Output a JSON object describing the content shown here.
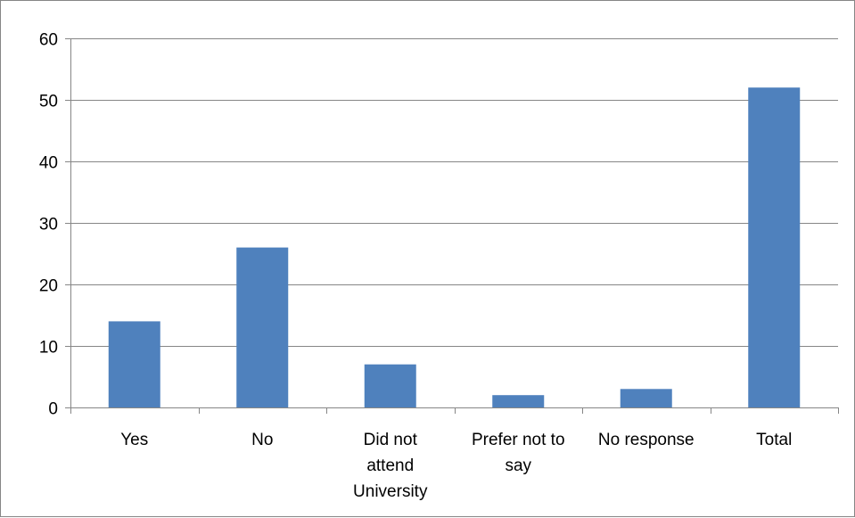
{
  "chart_data": {
    "type": "bar",
    "categories": [
      [
        "Yes"
      ],
      [
        "No"
      ],
      [
        "Did not",
        "attend",
        "University"
      ],
      [
        "Prefer not to",
        "say"
      ],
      [
        "No response"
      ],
      [
        "Total"
      ]
    ],
    "values": [
      14,
      26,
      7,
      2,
      3,
      52
    ],
    "title": "",
    "xlabel": "",
    "ylabel": "",
    "ylim": [
      0,
      60
    ],
    "yticks": [
      0,
      10,
      20,
      30,
      40,
      50,
      60
    ],
    "grid": true,
    "legend": "none",
    "bar_color": "#4F81BD",
    "grid_color": "#868686"
  }
}
